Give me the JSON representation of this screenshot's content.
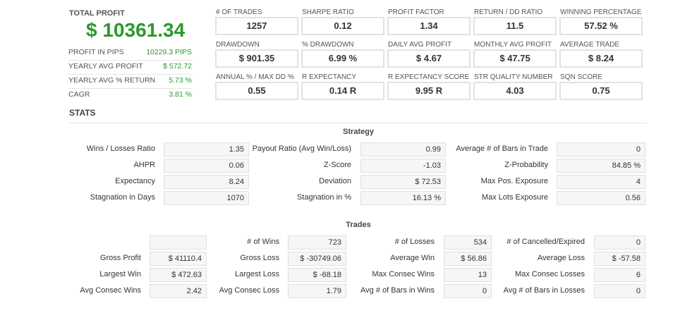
{
  "summary": {
    "title": "TOTAL PROFIT",
    "value": "$ 10361.34",
    "rows": [
      {
        "label": "PROFIT IN PIPS",
        "value": "10229.3 PIPS"
      },
      {
        "label": "YEARLY AVG PROFIT",
        "value": "$ 572.72"
      },
      {
        "label": "YEARLY AVG % RETURN",
        "value": "5.73 %"
      },
      {
        "label": "CAGR",
        "value": "3.81 %"
      }
    ]
  },
  "metrics": [
    {
      "label": "# OF TRADES",
      "value": "1257"
    },
    {
      "label": "SHARPE RATIO",
      "value": "0.12"
    },
    {
      "label": "PROFIT FACTOR",
      "value": "1.34"
    },
    {
      "label": "RETURN / DD RATIO",
      "value": "11.5"
    },
    {
      "label": "WINNING PERCENTAGE",
      "value": "57.52 %"
    },
    {
      "label": "DRAWDOWN",
      "value": "$ 901.35"
    },
    {
      "label": "% DRAWDOWN",
      "value": "6.99 %"
    },
    {
      "label": "DAILY AVG PROFIT",
      "value": "$ 4.67"
    },
    {
      "label": "MONTHLY AVG PROFIT",
      "value": "$ 47.75"
    },
    {
      "label": "AVERAGE TRADE",
      "value": "$ 8.24"
    },
    {
      "label": "ANNUAL % / MAX DD %",
      "value": "0.55"
    },
    {
      "label": "R EXPECTANCY",
      "value": "0.14 R"
    },
    {
      "label": "R EXPECTANCY SCORE",
      "value": "9.95 R"
    },
    {
      "label": "STR QUALITY NUMBER",
      "value": "4.03"
    },
    {
      "label": "SQN SCORE",
      "value": "0.75"
    }
  ],
  "stats_title": "STATS",
  "strategy": {
    "title": "Strategy",
    "rows": [
      [
        {
          "label": "Wins / Losses Ratio",
          "value": "1.35"
        },
        {
          "label": "Payout Ratio (Avg Win/Loss)",
          "value": "0.99"
        },
        {
          "label": "Average # of Bars in Trade",
          "value": "0"
        }
      ],
      [
        {
          "label": "AHPR",
          "value": "0.06"
        },
        {
          "label": "Z-Score",
          "value": "-1.03"
        },
        {
          "label": "Z-Probability",
          "value": "84.85 %"
        }
      ],
      [
        {
          "label": "Expectancy",
          "value": "8.24"
        },
        {
          "label": "Deviation",
          "value": "$ 72.53"
        },
        {
          "label": "Max Pos. Exposure",
          "value": "4"
        }
      ],
      [
        {
          "label": "Stagnation in Days",
          "value": "1070"
        },
        {
          "label": "Stagnation in %",
          "value": "16.13 %"
        },
        {
          "label": "Max Lots Exposure",
          "value": "0.56"
        }
      ]
    ]
  },
  "trades": {
    "title": "Trades",
    "rows": [
      [
        null,
        {
          "label": "# of Wins",
          "value": "723"
        },
        {
          "label": "# of Losses",
          "value": "534"
        },
        {
          "label": "# of Cancelled/Expired",
          "value": "0"
        }
      ],
      [
        {
          "label": "Gross Profit",
          "value": "$ 41110.4"
        },
        {
          "label": "Gross Loss",
          "value": "$ -30749.06"
        },
        {
          "label": "Average Win",
          "value": "$ 56.86"
        },
        {
          "label": "Average Loss",
          "value": "$ -57.58"
        }
      ],
      [
        {
          "label": "Largest Win",
          "value": "$ 472.63"
        },
        {
          "label": "Largest Loss",
          "value": "$ -68.18"
        },
        {
          "label": "Max Consec Wins",
          "value": "13"
        },
        {
          "label": "Max Consec Losses",
          "value": "6"
        }
      ],
      [
        {
          "label": "Avg Consec Wins",
          "value": "2.42"
        },
        {
          "label": "Avg Consec Loss",
          "value": "1.79"
        },
        {
          "label": "Avg # of Bars in Wins",
          "value": "0"
        },
        {
          "label": "Avg # of Bars in Losses",
          "value": "0"
        }
      ]
    ]
  }
}
